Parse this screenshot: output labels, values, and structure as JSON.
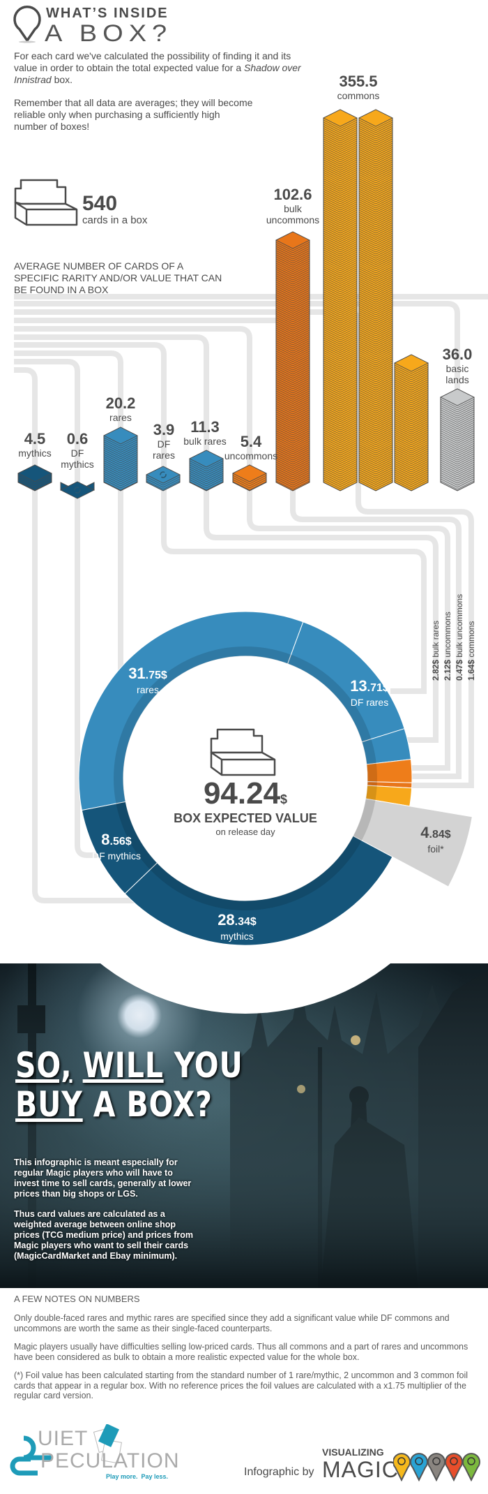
{
  "header": {
    "title_line1": "WHAT’S INSIDE",
    "title_line2": "A BOX?",
    "icon": "map-pin-icon"
  },
  "intro": {
    "p1_before": "For each card we've calculated the possibility of finding it and its value in order to obtain the total expected value for a ",
    "p1_italic": "Shadow over Innistrad",
    "p1_after": " box.",
    "p2": "Remember that all data are averages; they will become reliable only when purchasing a sufficiently high number of boxes!"
  },
  "box_count": {
    "value": "540",
    "label": "cards in a box",
    "icon": "booster-box-icon"
  },
  "section_label": "AVERAGE NUMBER OF CARDS OF A SPECIFIC RARITY AND/OR VALUE THAT CAN BE FOUND IN A BOX",
  "colors": {
    "mythic": "#15557a",
    "rare": "#378cbd",
    "uncommon": "#ee7d1a",
    "bulk_uncommon": "#e8761a",
    "common": "#f7a81b",
    "basic": "#c8cacb",
    "foil": "#d3d3d3",
    "pipe": "#e6e6e6"
  },
  "chart_data": [
    {
      "type": "bar",
      "categories": [
        "mythics",
        "DF mythics",
        "rares",
        "DF rares",
        "bulk rares",
        "uncommons",
        "bulk uncommons",
        "commons",
        "basic lands"
      ],
      "values": [
        4.5,
        0.6,
        20.2,
        3.9,
        11.3,
        5.4,
        102.6,
        355.5,
        36.0
      ],
      "labels": [
        {
          "value": "4.5",
          "lines": [
            "mythics"
          ]
        },
        {
          "value": "0.6",
          "lines": [
            "DF",
            "mythics"
          ]
        },
        {
          "value": "20.2",
          "lines": [
            "rares"
          ]
        },
        {
          "value": "3.9",
          "lines": [
            "DF",
            "rares"
          ]
        },
        {
          "value": "11.3",
          "lines": [
            "bulk rares"
          ]
        },
        {
          "value": "5.4",
          "lines": [
            "uncommons"
          ]
        },
        {
          "value": "102.6",
          "lines": [
            "bulk",
            "uncommons"
          ]
        },
        {
          "value": "355.5",
          "lines": [
            "commons"
          ]
        },
        {
          "value": "36.0",
          "lines": [
            "basic",
            "lands"
          ]
        }
      ]
    },
    {
      "type": "pie",
      "variant": "donut",
      "total": {
        "int": "94.24",
        "unit": "$",
        "label": "BOX EXPECTED VALUE",
        "sublabel": "on release day"
      },
      "slices": [
        {
          "name": "rares",
          "value": 31.75,
          "int": "31",
          "dec": ".75$",
          "color": "#378cbd"
        },
        {
          "name": "DF rares",
          "value": 13.71,
          "int": "13",
          "dec": ".71$",
          "color": "#378cbd"
        },
        {
          "name": "bulk rares",
          "value": 2.82,
          "text": "2.82$",
          "color": "#378cbd"
        },
        {
          "name": "uncommons",
          "value": 2.12,
          "text": "2.12$",
          "color": "#ee7d1a"
        },
        {
          "name": "bulk uncommons",
          "value": 0.47,
          "text": "0.47$",
          "color": "#e8761a"
        },
        {
          "name": "commons",
          "value": 1.64,
          "text": "1.64$",
          "color": "#f7a81b"
        },
        {
          "name": "foil*",
          "value": 4.84,
          "int": "4",
          "dec": ".84$",
          "color": "#d3d3d3",
          "exploded": true
        },
        {
          "name": "mythics",
          "value": 28.34,
          "int": "28",
          "dec": ".34$",
          "color": "#15557a"
        },
        {
          "name": "DF mythics",
          "value": 8.56,
          "int": "8",
          "dec": ".56$",
          "color": "#15557a"
        }
      ]
    }
  ],
  "photo_section": {
    "title_w1": "SO,",
    "title_w2": "WILL",
    "title_w3": "YOU",
    "title_w4": "BUY",
    "title_w5": "A BOX?",
    "p1": "This infographic is meant especially for regular Magic players who will have to invest time to sell cards, generally at lower prices than big shops or LGS.",
    "p2": "Thus card values are calculated as a weighted average between online shop prices (TCG medium price) and prices from Magic players who want to sell their cards (MagicCardMarket and Ebay minimum)."
  },
  "notes": {
    "heading": "A FEW NOTES ON NUMBERS",
    "n1": "Only double-faced rares and mythic rares are specified since they add a significant value while DF commons and uncommons are worth the same as their single-faced counterparts.",
    "n2": "Magic players usually have difficulties selling low-priced cards. Thus all commons and a part of rares and uncommons have been considered as bulk to obtain a more realistic expected value for the whole box.",
    "n3": "(*) Foil value has been calculated starting from the standard number of 1 rare/mythic, 2 uncommon and 3 common foil cards that appear in a regular box. With no reference prices the foil values are calculated with a x1.75 multiplier of the regular card version."
  },
  "footer": {
    "qs_logo": {
      "q": "Q",
      "uiet": "UIET",
      "s": "S",
      "peculation": "PECULATION",
      "tagline": "Play more.  Pay less."
    },
    "credit": "Infographic by",
    "vm_logo": {
      "line1": "VISUALIZING",
      "line2": "MAGIC",
      "pin_colors": [
        "#f6b91c",
        "#2aa3d4",
        "#8a8580",
        "#e84e2b",
        "#7cb93e"
      ]
    }
  }
}
